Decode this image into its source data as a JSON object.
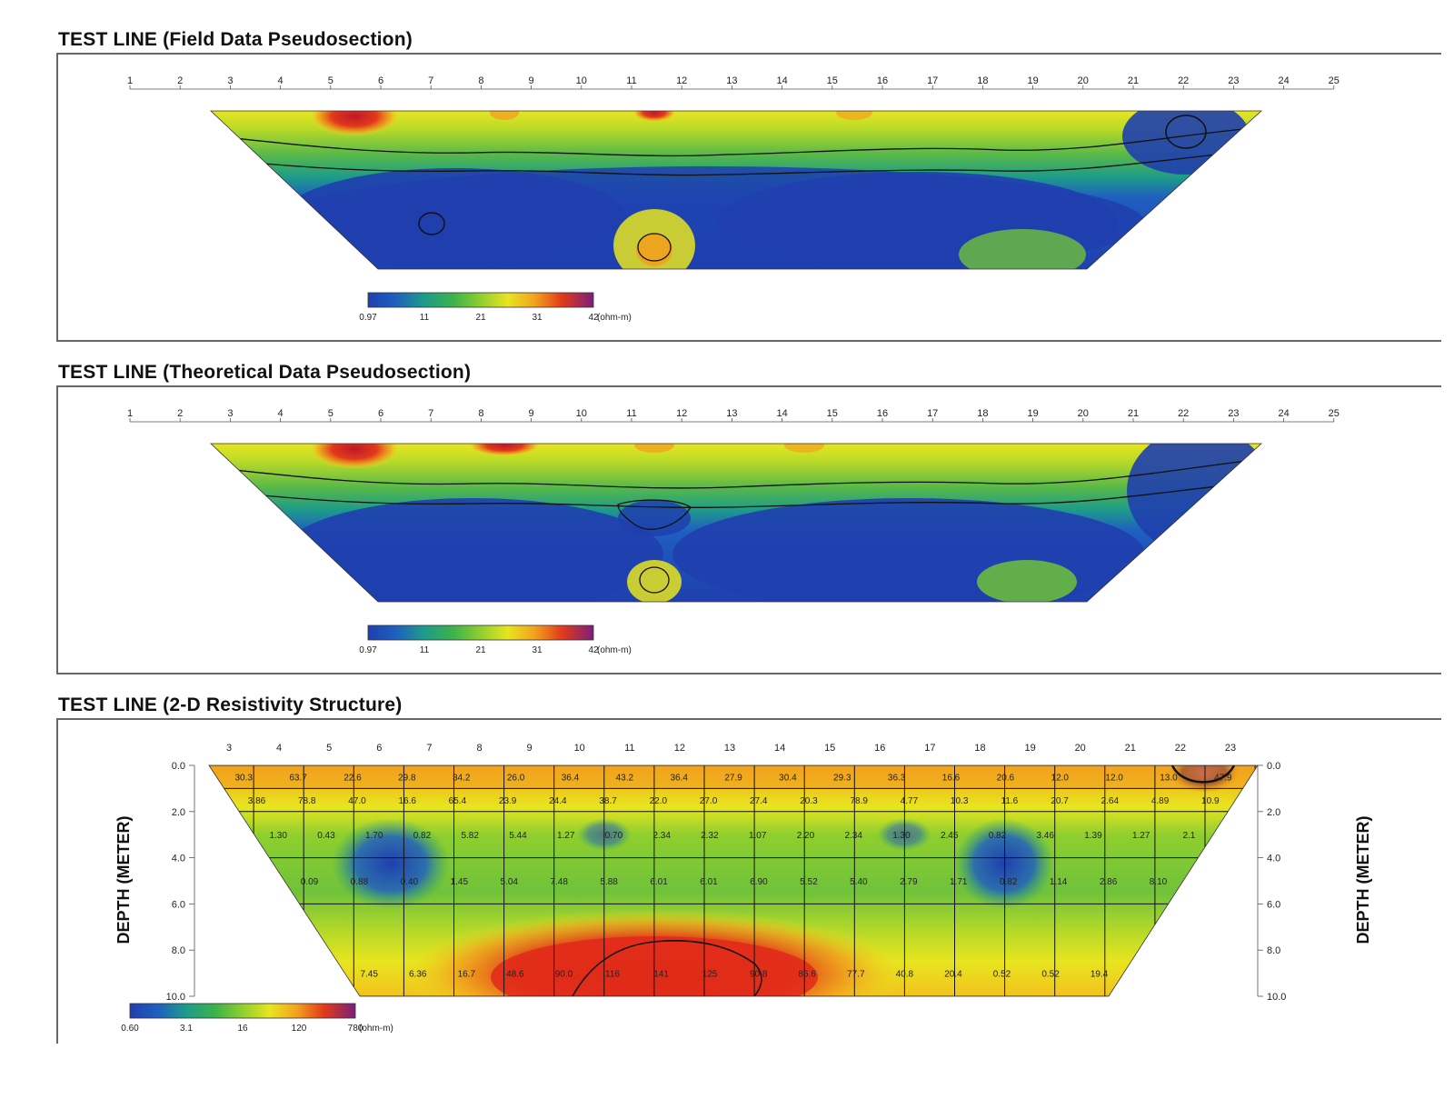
{
  "chart_data": [
    {
      "type": "heatmap",
      "title": "TEST LINE (Field Data Pseudosection)",
      "electrode_ticks": [
        "1",
        "2",
        "3",
        "4",
        "5",
        "6",
        "7",
        "8",
        "9",
        "10",
        "11",
        "12",
        "13",
        "14",
        "15",
        "16",
        "17",
        "18",
        "19",
        "20",
        "21",
        "22",
        "23",
        "24",
        "25"
      ],
      "colorbar": {
        "labels": [
          "0.97",
          "11",
          "21",
          "31",
          "42"
        ],
        "unit": "(ohm-m)",
        "colors": [
          "#1f3fae",
          "#1f5fc0",
          "#1d9b8a",
          "#3cb34a",
          "#8fcf2e",
          "#e8e51f",
          "#f2a21e",
          "#e23a1a",
          "#c0182a",
          "#7b1f7a"
        ]
      }
    },
    {
      "type": "heatmap",
      "title": "TEST LINE (Theoretical Data Pseudosection)",
      "electrode_ticks": [
        "1",
        "2",
        "3",
        "4",
        "5",
        "6",
        "7",
        "8",
        "9",
        "10",
        "11",
        "12",
        "13",
        "14",
        "15",
        "16",
        "17",
        "18",
        "19",
        "20",
        "21",
        "22",
        "23",
        "24",
        "25"
      ],
      "colorbar": {
        "labels": [
          "0.97",
          "11",
          "21",
          "31",
          "42"
        ],
        "unit": "(ohm-m)",
        "colors": [
          "#1f3fae",
          "#1f5fc0",
          "#1d9b8a",
          "#3cb34a",
          "#8fcf2e",
          "#e8e51f",
          "#f2a21e",
          "#e23a1a",
          "#c0182a",
          "#7b1f7a"
        ]
      }
    },
    {
      "type": "heatmap",
      "title": "TEST LINE (2-D Resistivity Structure)",
      "ylabel": "DEPTH (METER)",
      "electrode_ticks": [
        "3",
        "4",
        "5",
        "6",
        "7",
        "8",
        "9",
        "10",
        "11",
        "12",
        "13",
        "14",
        "15",
        "16",
        "17",
        "18",
        "19",
        "20",
        "21",
        "22",
        "23"
      ],
      "depth_ticks": [
        "0.0",
        "2.0",
        "4.0",
        "6.0",
        "8.0",
        "10.0"
      ],
      "depth_range": [
        0,
        10
      ],
      "rows": [
        {
          "depth": 0.5,
          "values": [
            "30.3",
            "63.7",
            "22.6",
            "29.8",
            "34.2",
            "26.0",
            "36.4",
            "43.2",
            "36.4",
            "27.9",
            "30.4",
            "29.3",
            "36.3",
            "16.6",
            "20.6",
            "12.0",
            "12.0",
            "13.0",
            "47.9"
          ]
        },
        {
          "depth": 1.5,
          "values": [
            "3.86",
            "78.8",
            "47.0",
            "16.6",
            "65.4",
            "23.9",
            "24.4",
            "38.7",
            "22.0",
            "27.0",
            "27.4",
            "20.3",
            "78.9",
            "4.77",
            "10.3",
            "11.6",
            "20.7",
            "2.64",
            "4.89",
            "10.9"
          ]
        },
        {
          "depth": 3.0,
          "values": [
            "1.30",
            "0.43",
            "1.70",
            "0.82",
            "5.82",
            "5.44",
            "1.27",
            "0.70",
            "2.34",
            "2.32",
            "1.07",
            "2.20",
            "2.34",
            "1.30",
            "2.45",
            "0.82",
            "3.46",
            "1.39",
            "1.27",
            "2.1"
          ]
        },
        {
          "depth": 5.0,
          "values": [
            "0.09",
            "0.88",
            "0.40",
            "1.45",
            "5.04",
            "7.48",
            "5.88",
            "6.01",
            "6.01",
            "6.90",
            "5.52",
            "5.40",
            "2.79",
            "1.71",
            "0.82",
            "1.14",
            "2.86",
            "8.10"
          ]
        },
        {
          "depth": 9.0,
          "values": [
            "7.45",
            "6.36",
            "16.7",
            "48.6",
            "90.0",
            "116",
            "141",
            "125",
            "90.8",
            "86.6",
            "77.7",
            "40.8",
            "20.4",
            "0.52",
            "0.52",
            "19.4"
          ]
        }
      ],
      "colorbar": {
        "labels": [
          "0.60",
          "3.1",
          "16",
          "120",
          "780"
        ],
        "unit": "(ohm-m)",
        "colors": [
          "#1f3fae",
          "#1f5fc0",
          "#1d9b8a",
          "#3cb34a",
          "#8fcf2e",
          "#e8e51f",
          "#f2a21e",
          "#e23a1a",
          "#c0182a",
          "#7b1f7a"
        ]
      }
    }
  ]
}
